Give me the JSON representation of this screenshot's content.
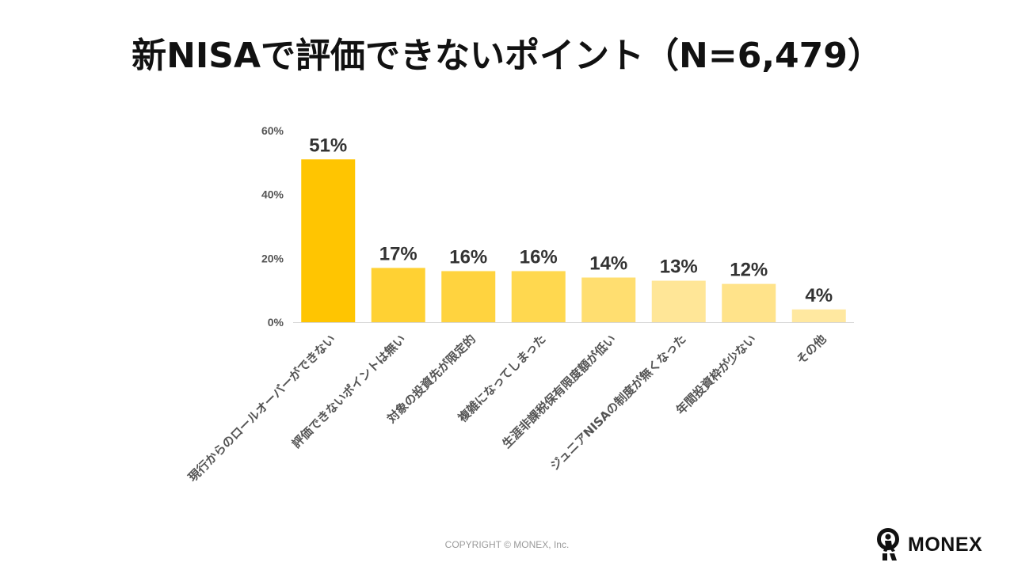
{
  "title": "新NISAで評価できないポイント（N=6,479）",
  "chart_data": {
    "type": "bar",
    "categories": [
      "現行からのロールオーバーができない",
      "評価できないポイントは無い",
      "対象の投資先が限定的",
      "複雑になってしまった",
      "生涯非課税保有限度額が低い",
      "ジュニアNISAの制度が無くなった",
      "年間投資枠が少ない",
      "その他"
    ],
    "values": [
      51,
      17,
      16,
      16,
      14,
      13,
      12,
      4
    ],
    "data_labels": [
      "51%",
      "17%",
      "16%",
      "16%",
      "14%",
      "13%",
      "12%",
      "4%"
    ],
    "y_ticks": [
      0,
      20,
      40,
      60
    ],
    "y_tick_labels": [
      "0%",
      "20%",
      "40%",
      "60%"
    ],
    "ylim": [
      0,
      60
    ],
    "grid": false,
    "bar_colors": [
      "#FFC501",
      "#FFD133",
      "#FFD33F",
      "#FFD84F",
      "#FFDE70",
      "#FFE697",
      "#FFE38A",
      "#FFE8A0"
    ]
  },
  "footer": {
    "copyright": "COPYRIGHT © MONEX, Inc."
  },
  "logo": {
    "text": "MONEX"
  }
}
